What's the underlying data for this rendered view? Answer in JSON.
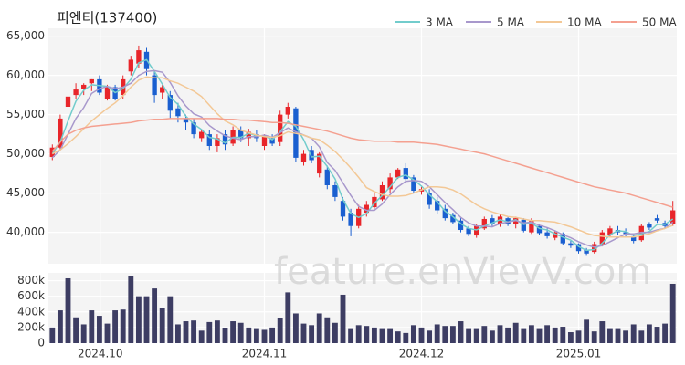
{
  "chart_data": [
    {
      "type": "candlestick",
      "title": "피엔티(137400)",
      "watermark": "feature.enVievV.com",
      "xlim": [
        -0.5,
        79.5
      ],
      "ylim": [
        36000,
        66000
      ],
      "grid": true,
      "legend": "top-right",
      "up_color": "#e8252a",
      "down_color": "#1a5fd0",
      "yticks": [
        {
          "value": 40000,
          "label": "40,000"
        },
        {
          "value": 45000,
          "label": "45,000"
        },
        {
          "value": 50000,
          "label": "50,000"
        },
        {
          "value": 55000,
          "label": "55,000"
        },
        {
          "value": 60000,
          "label": "60,000"
        },
        {
          "value": 65000,
          "label": "65,000"
        }
      ],
      "open": [
        49600,
        50800,
        56000,
        57500,
        58300,
        59000,
        59500,
        57000,
        58500,
        57500,
        60500,
        61500,
        63000,
        60000,
        57800,
        57500,
        55800,
        54500,
        54000,
        52000,
        52500,
        51000,
        52500,
        51300,
        53000,
        52000,
        52500,
        51000,
        52000,
        51500,
        55000,
        55800,
        49000,
        50500,
        47500,
        48000,
        46000,
        44000,
        42500,
        40800,
        42500,
        43200,
        44200,
        45500,
        47000,
        48200,
        47000,
        45200,
        45000,
        44000,
        43000,
        42200,
        41500,
        40500,
        39600,
        40500,
        41800,
        41000,
        41800,
        41000,
        41600,
        40000,
        40800,
        40000,
        39300,
        39800,
        38600,
        38500,
        37800,
        37500,
        38500,
        39600,
        40300,
        40000,
        39500,
        39000,
        41000,
        41800,
        41200,
        41000
      ],
      "high": [
        51200,
        55000,
        58200,
        59000,
        59000,
        59500,
        60000,
        58800,
        58800,
        60000,
        62500,
        63800,
        63500,
        60500,
        58800,
        58000,
        56500,
        55000,
        54500,
        53000,
        53000,
        52500,
        53000,
        53500,
        53500,
        53200,
        53000,
        52500,
        52500,
        55500,
        56500,
        56000,
        50500,
        51000,
        50200,
        48500,
        46500,
        44500,
        43000,
        43500,
        44000,
        45000,
        46500,
        47500,
        48200,
        48800,
        47300,
        45800,
        45500,
        44500,
        43500,
        42500,
        41800,
        40800,
        41000,
        42000,
        42200,
        42300,
        42000,
        42000,
        41800,
        41800,
        41000,
        40500,
        40200,
        40000,
        38900,
        38600,
        38000,
        38800,
        40300,
        40800,
        40800,
        40500,
        39800,
        41000,
        41300,
        42200,
        41500,
        44000
      ],
      "low": [
        49200,
        50500,
        55500,
        57000,
        57500,
        58000,
        57500,
        56800,
        56800,
        57000,
        60000,
        61000,
        60000,
        56500,
        57000,
        54500,
        54000,
        53000,
        52000,
        51500,
        50500,
        50200,
        50500,
        51000,
        51500,
        51000,
        51500,
        50500,
        51000,
        51000,
        54500,
        49000,
        48500,
        48800,
        47000,
        45500,
        44000,
        41500,
        39500,
        40500,
        42000,
        43000,
        44000,
        45000,
        46800,
        46500,
        45000,
        44800,
        43000,
        42300,
        41500,
        41000,
        40000,
        39500,
        39300,
        40300,
        40800,
        40700,
        40800,
        40500,
        40000,
        39800,
        39700,
        39200,
        39000,
        38400,
        38000,
        37300,
        37000,
        37300,
        38200,
        39400,
        39700,
        39500,
        38600,
        38800,
        40300,
        41200,
        40500,
        40800
      ],
      "close": [
        50800,
        54500,
        57300,
        58200,
        58800,
        59500,
        57800,
        58500,
        57000,
        59500,
        62000,
        63200,
        60800,
        57500,
        58500,
        55500,
        54800,
        54000,
        52500,
        52800,
        51000,
        52000,
        51200,
        53000,
        52000,
        52800,
        52000,
        52200,
        51300,
        55000,
        56000,
        49500,
        50000,
        49200,
        50000,
        46000,
        44500,
        42000,
        40800,
        43000,
        43500,
        44500,
        46000,
        47000,
        48000,
        46800,
        45300,
        45500,
        43500,
        42800,
        41800,
        41300,
        40300,
        39800,
        40800,
        41700,
        41000,
        42000,
        41000,
        41800,
        40200,
        41500,
        39900,
        39500,
        40000,
        38600,
        38300,
        37600,
        37300,
        38500,
        40000,
        40500,
        40000,
        39800,
        38900,
        40800,
        40600,
        41500,
        40800,
        42800
      ],
      "series": [
        {
          "name": "3 MA",
          "color": "#72cccc",
          "values": [
            50000,
            51500,
            54200,
            56700,
            58100,
            58800,
            58700,
            58600,
            57800,
            58300,
            59500,
            61600,
            62000,
            60500,
            58900,
            57200,
            56300,
            54800,
            53800,
            53100,
            52100,
            51900,
            51400,
            52100,
            52100,
            52600,
            52300,
            52300,
            51800,
            52800,
            54100,
            53500,
            51800,
            49600,
            49700,
            48400,
            46800,
            44200,
            42400,
            41900,
            42400,
            43700,
            44700,
            45800,
            47000,
            47300,
            46700,
            45900,
            44800,
            43900,
            42700,
            42000,
            41100,
            40500,
            40300,
            40800,
            41200,
            41600,
            41300,
            41600,
            41000,
            41200,
            40500,
            40300,
            39800,
            39400,
            39000,
            38200,
            37700,
            37800,
            38600,
            39700,
            40200,
            40100,
            39600,
            39800,
            40100,
            41000,
            41000,
            41700
          ]
        },
        {
          "name": "5 MA",
          "color": "#a898cc",
          "values": [
            49500,
            50500,
            52500,
            54500,
            55900,
            57700,
            58300,
            58600,
            58300,
            58500,
            59000,
            60000,
            60500,
            60600,
            60400,
            59100,
            57400,
            56100,
            55100,
            54700,
            53600,
            52900,
            52300,
            52000,
            51800,
            52200,
            52200,
            52400,
            52100,
            52700,
            53300,
            52800,
            52400,
            52000,
            50900,
            48900,
            47900,
            46300,
            44700,
            43300,
            42800,
            42800,
            43600,
            44800,
            45800,
            46500,
            46600,
            46500,
            45800,
            44800,
            43800,
            42900,
            41900,
            41200,
            40800,
            40800,
            40700,
            41100,
            41300,
            41500,
            41200,
            41300,
            40900,
            40600,
            40200,
            39700,
            39300,
            38800,
            38400,
            38100,
            38300,
            38800,
            39300,
            39800,
            39800,
            40000,
            40000,
            40300,
            40500,
            41300
          ]
        },
        {
          "name": "10 MA",
          "color": "#f3c896",
          "values": [
            50000,
            50500,
            51300,
            52200,
            53200,
            54200,
            55000,
            55800,
            56500,
            57400,
            58500,
            59400,
            59800,
            59700,
            59700,
            59300,
            59000,
            58500,
            58000,
            57300,
            56200,
            55100,
            54200,
            53700,
            53000,
            52700,
            52400,
            52200,
            52100,
            52300,
            52800,
            52600,
            52400,
            52000,
            51800,
            51100,
            50300,
            49300,
            48200,
            47000,
            45700,
            45200,
            44800,
            44600,
            44600,
            44700,
            45000,
            45400,
            45800,
            45800,
            45700,
            45400,
            44900,
            44200,
            43500,
            43000,
            42600,
            42300,
            42000,
            41900,
            41700,
            41500,
            41500,
            41400,
            41300,
            41000,
            40700,
            40300,
            39900,
            39600,
            39500,
            39400,
            39400,
            39400,
            39400,
            39600,
            39800,
            40200,
            40500,
            40900
          ]
        },
        {
          "name": "50 MA",
          "color": "#f4a090",
          "values": [
            50300,
            51500,
            52500,
            53000,
            53300,
            53500,
            53600,
            53700,
            53800,
            53900,
            54000,
            54200,
            54300,
            54400,
            54400,
            54500,
            54500,
            54500,
            54500,
            54500,
            54500,
            54500,
            54400,
            54400,
            54300,
            54300,
            54200,
            54100,
            54000,
            54000,
            53900,
            53700,
            53500,
            53300,
            53100,
            52900,
            52600,
            52300,
            52000,
            51800,
            51700,
            51600,
            51600,
            51600,
            51500,
            51500,
            51500,
            51400,
            51300,
            51200,
            51000,
            50800,
            50600,
            50400,
            50200,
            50000,
            49700,
            49400,
            49100,
            48800,
            48500,
            48200,
            47900,
            47600,
            47300,
            47000,
            46700,
            46400,
            46100,
            45800,
            45600,
            45400,
            45200,
            45000,
            44700,
            44400,
            44100,
            43800,
            43500,
            43200
          ]
        }
      ]
    },
    {
      "type": "bar",
      "xlim": [
        -0.5,
        79.5
      ],
      "ylim": [
        0,
        900000
      ],
      "color": "#3d3d63",
      "grid": true,
      "yticks": [
        0,
        {
          "value": 200000,
          "label": "200k"
        },
        {
          "value": 400000,
          "label": "400k"
        },
        {
          "value": 600000,
          "label": "600k"
        },
        {
          "value": 800000,
          "label": "800k"
        }
      ],
      "xticks": [
        {
          "value": 6.1,
          "label": "2024.10"
        },
        {
          "value": 27,
          "label": "2024.11"
        },
        {
          "value": 47,
          "label": "2024.12"
        },
        {
          "value": 67,
          "label": "2025.01"
        }
      ],
      "values": [
        200000,
        420000,
        830000,
        330000,
        240000,
        420000,
        350000,
        250000,
        420000,
        430000,
        860000,
        600000,
        600000,
        700000,
        450000,
        600000,
        240000,
        280000,
        290000,
        160000,
        270000,
        290000,
        190000,
        280000,
        260000,
        200000,
        180000,
        170000,
        200000,
        320000,
        650000,
        380000,
        250000,
        230000,
        380000,
        330000,
        260000,
        620000,
        180000,
        230000,
        220000,
        200000,
        180000,
        180000,
        150000,
        130000,
        230000,
        200000,
        160000,
        240000,
        220000,
        220000,
        280000,
        180000,
        180000,
        220000,
        160000,
        230000,
        200000,
        260000,
        180000,
        230000,
        180000,
        230000,
        200000,
        210000,
        140000,
        160000,
        300000,
        150000,
        280000,
        180000,
        180000,
        160000,
        240000,
        160000,
        240000,
        210000,
        250000,
        760000
      ]
    }
  ]
}
